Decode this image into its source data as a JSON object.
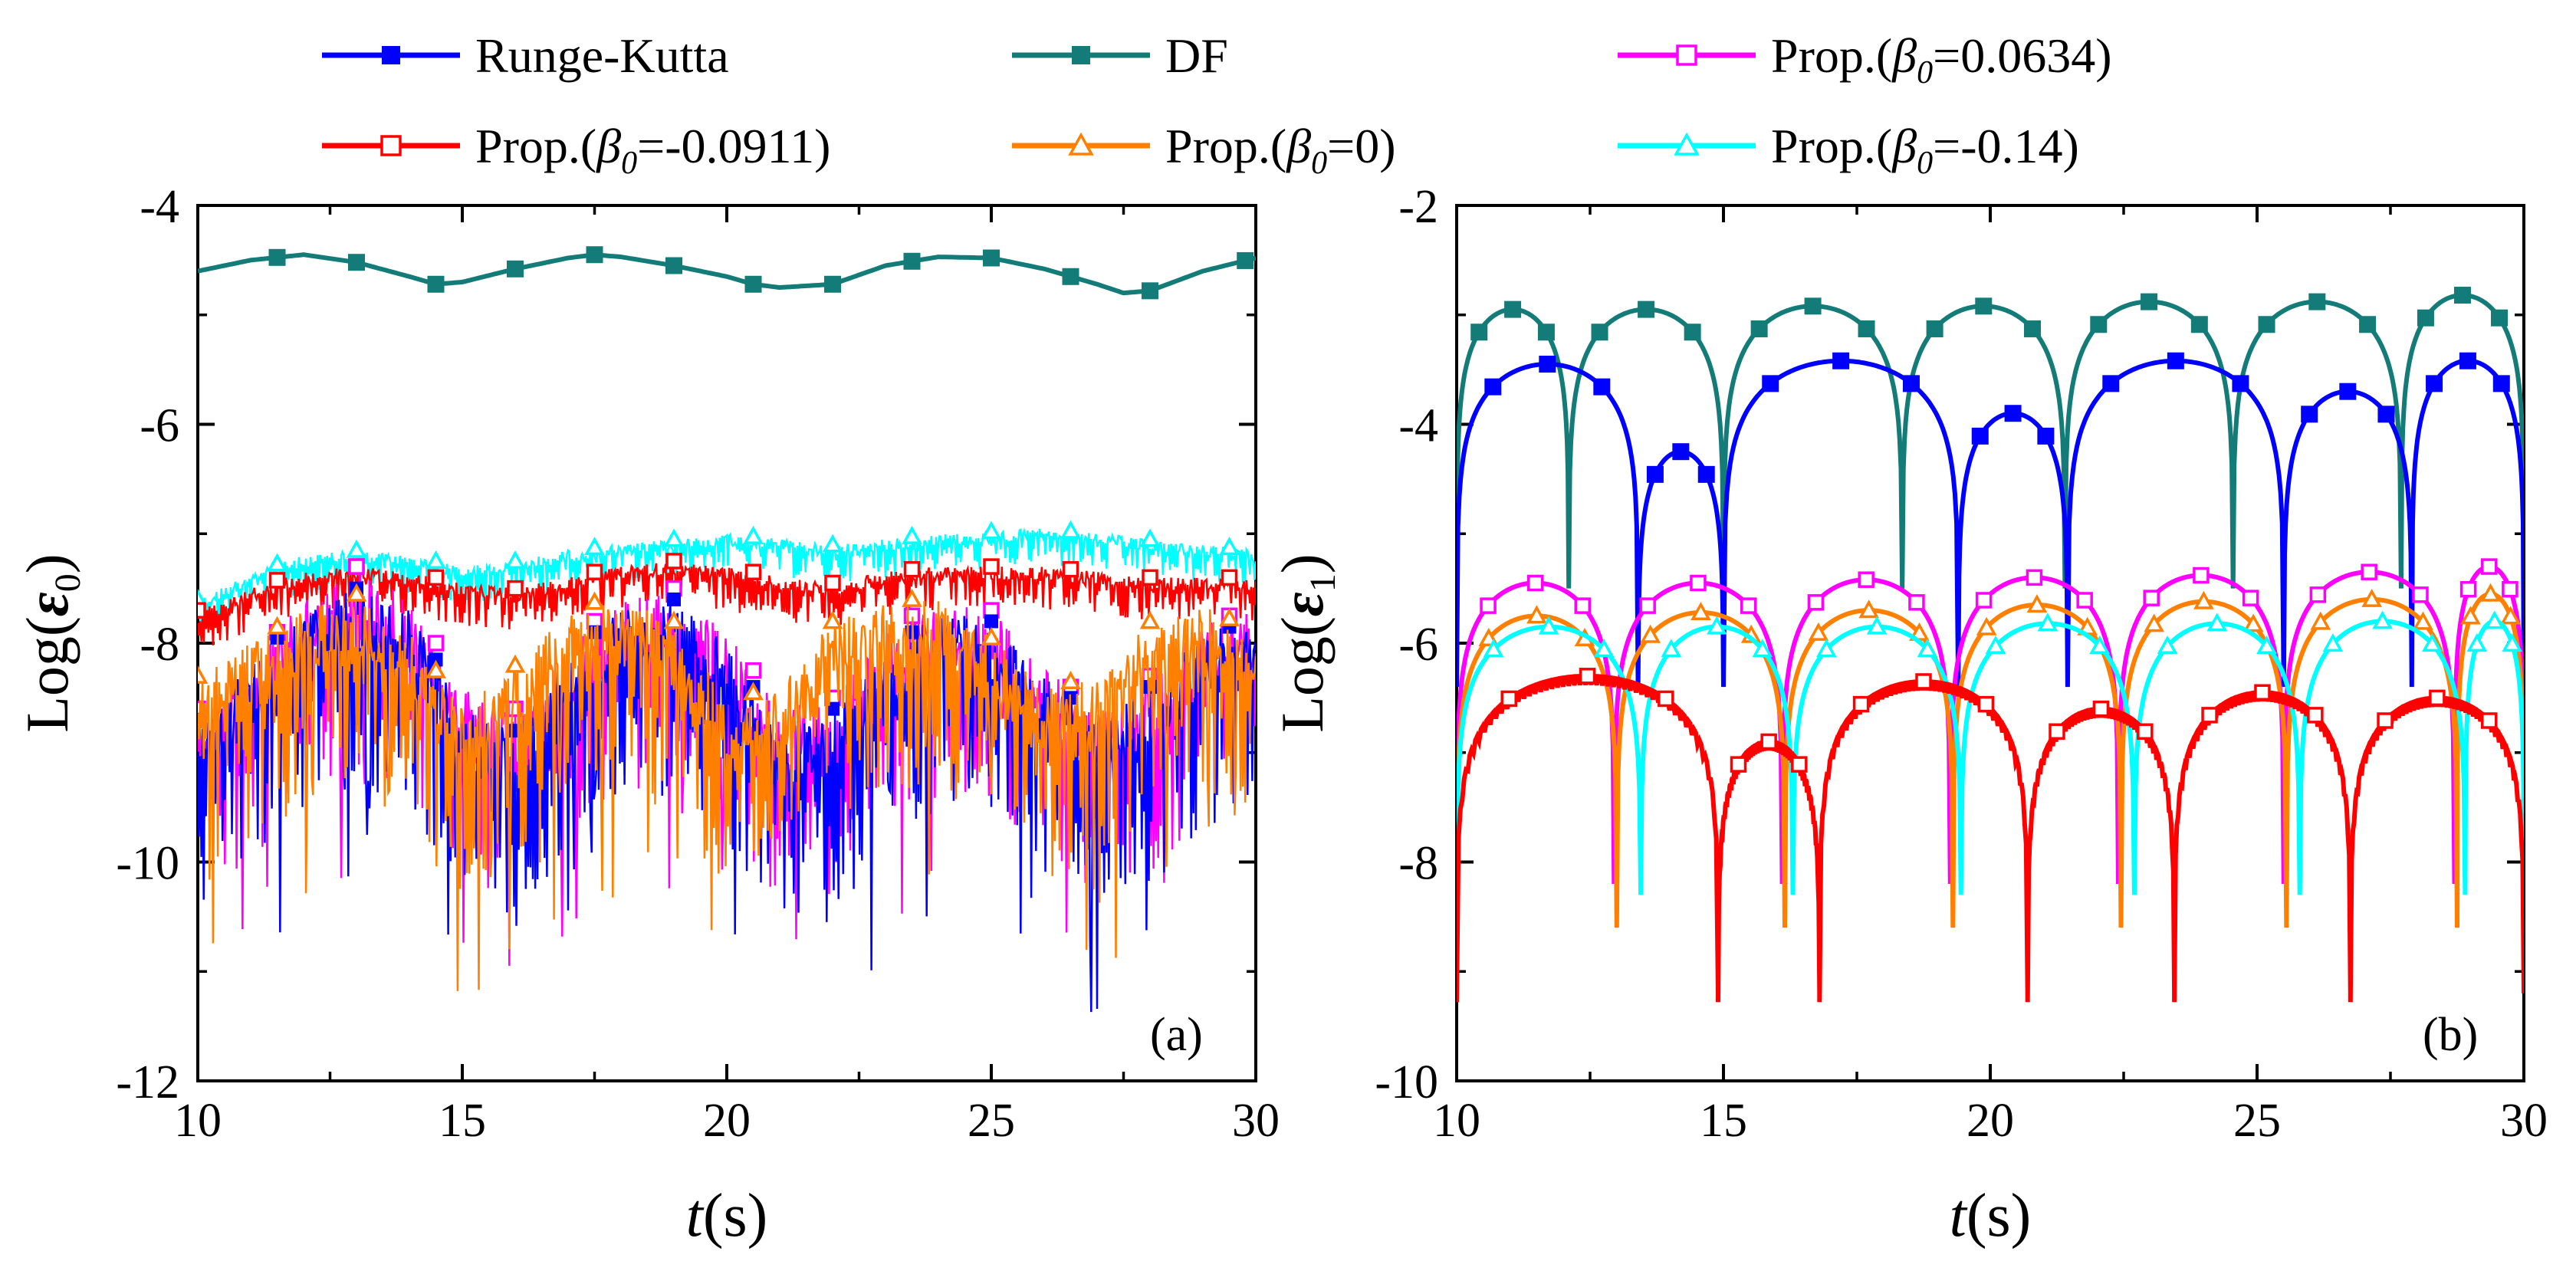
{
  "legend": [
    {
      "label": "Runge-Kutta",
      "color": "#0000ff",
      "marker": "filled-square"
    },
    {
      "label": "DF",
      "color": "#137b78",
      "marker": "filled-square"
    },
    {
      "label": "Prop.(",
      "beta": "β",
      "sub": "0",
      "value": "=0.0634)",
      "color": "#ff00ff",
      "marker": "open-square"
    },
    {
      "label": "Prop.(",
      "beta": "β",
      "sub": "0",
      "value": "=-0.0911)",
      "color": "#ff0000",
      "marker": "open-square"
    },
    {
      "label": "Prop.(",
      "beta": "β",
      "sub": "0",
      "value": "=0)",
      "color": "#ff8000",
      "marker": "open-triangle"
    },
    {
      "label": "Prop.(",
      "beta": "β",
      "sub": "0",
      "value": "=-0.14)",
      "color": "#00ffff",
      "marker": "open-triangle"
    }
  ],
  "chart_data": [
    {
      "type": "line",
      "panel_label": "(a)",
      "xlabel": "t(s)",
      "ylabel": "Log(ε0)",
      "xlim": [
        10,
        30
      ],
      "ylim": [
        -12,
        -4
      ],
      "xticks": [
        "10",
        "15",
        "20",
        "25",
        "30"
      ],
      "yticks": [
        "-12",
        "-10",
        "-8",
        "-6",
        "-4"
      ],
      "series": [
        {
          "name": "DF",
          "x": [
            10,
            11,
            12,
            13,
            14,
            14.5,
            15,
            16,
            17,
            17.5,
            18,
            19,
            20,
            20.5,
            21,
            22,
            23,
            24,
            25,
            26,
            27,
            27.5,
            28,
            29,
            30
          ],
          "y": [
            -4.6,
            -4.5,
            -4.45,
            -4.52,
            -4.65,
            -4.72,
            -4.7,
            -4.58,
            -4.48,
            -4.45,
            -4.47,
            -4.55,
            -4.65,
            -4.72,
            -4.75,
            -4.72,
            -4.55,
            -4.47,
            -4.48,
            -4.58,
            -4.72,
            -4.8,
            -4.78,
            -4.6,
            -4.48
          ]
        },
        {
          "name": "Prop.(β0=-0.14)",
          "x": [
            10,
            11,
            12,
            13,
            14,
            15,
            16,
            17,
            18,
            19,
            20,
            21,
            22,
            23,
            24,
            25,
            26,
            27,
            28,
            29,
            30
          ],
          "y": [
            -7.6,
            -7.35,
            -7.2,
            -7.15,
            -7.2,
            -7.3,
            -7.25,
            -7.15,
            -7.1,
            -7.05,
            -7.0,
            -7.05,
            -7.1,
            -7.05,
            -7.0,
            -6.98,
            -6.95,
            -7.0,
            -7.05,
            -7.1,
            -7.15
          ]
        },
        {
          "name": "Prop.(β0=-0.0911)",
          "x": [
            10,
            11,
            12,
            13,
            14,
            15,
            16,
            17,
            18,
            19,
            20,
            21,
            22,
            23,
            24,
            25,
            26,
            27,
            28,
            29,
            30
          ],
          "y": [
            -7.7,
            -7.5,
            -7.35,
            -7.3,
            -7.35,
            -7.45,
            -7.5,
            -7.4,
            -7.3,
            -7.25,
            -7.3,
            -7.4,
            -7.45,
            -7.35,
            -7.3,
            -7.3,
            -7.3,
            -7.35,
            -7.4,
            -7.4,
            -7.4
          ]
        },
        {
          "name": "Prop.(β0=0.0634)",
          "x": [
            10,
            11,
            12,
            13,
            14,
            15,
            16,
            17,
            18,
            19,
            20,
            21,
            22,
            23,
            24,
            25,
            26,
            27,
            28,
            29,
            30
          ],
          "y": [
            -8.6,
            -8.2,
            -7.6,
            -7.3,
            -7.6,
            -8.4,
            -8.6,
            -8.0,
            -7.6,
            -7.5,
            -7.9,
            -8.6,
            -8.5,
            -7.9,
            -7.6,
            -7.7,
            -8.2,
            -8.6,
            -8.3,
            -7.8,
            -7.7
          ]
        },
        {
          "name": "Runge-Kutta",
          "x": [
            10,
            11,
            12,
            13,
            14,
            15,
            16,
            17,
            18,
            19,
            20,
            21,
            22,
            23,
            24,
            25,
            26,
            27,
            28,
            29,
            30
          ],
          "y": [
            -8.7,
            -8.2,
            -7.7,
            -7.5,
            -7.7,
            -8.6,
            -8.8,
            -8.1,
            -7.7,
            -7.6,
            -8.0,
            -8.8,
            -8.6,
            -8.1,
            -7.7,
            -7.8,
            -8.3,
            -8.7,
            -8.4,
            -7.9,
            -7.8
          ]
        },
        {
          "name": "Prop.(β0=0)",
          "x": [
            10,
            11,
            12,
            13,
            14,
            15,
            16,
            17,
            18,
            19,
            20,
            21,
            22,
            23,
            24,
            25,
            26,
            27,
            28,
            29,
            30
          ],
          "y": [
            -8.3,
            -8.0,
            -7.7,
            -7.55,
            -7.9,
            -8.6,
            -8.2,
            -7.7,
            -7.55,
            -7.8,
            -8.5,
            -8.4,
            -7.8,
            -7.6,
            -7.6,
            -7.95,
            -8.4,
            -8.3,
            -7.8,
            -7.65,
            -7.9
          ]
        }
      ]
    },
    {
      "type": "line",
      "panel_label": "(b)",
      "xlabel": "t(s)",
      "ylabel": "Log(ε1)",
      "xlim": [
        10,
        30
      ],
      "ylim": [
        -10,
        -2
      ],
      "xticks": [
        "10",
        "15",
        "20",
        "25",
        "30"
      ],
      "yticks": [
        "-10",
        "-8",
        "-6",
        "-4",
        "-2"
      ],
      "series": [
        {
          "name": "DF",
          "arches": [
            [
              10,
              12.1,
              -2.95
            ],
            [
              12.1,
              15,
              -2.95
            ],
            [
              15,
              18.35,
              -2.92
            ],
            [
              18.35,
              21.4,
              -2.92
            ],
            [
              21.4,
              24.55,
              -2.88
            ],
            [
              24.55,
              27.7,
              -2.88
            ],
            [
              27.7,
              30,
              -2.82
            ]
          ],
          "zero_depth": -5.5
        },
        {
          "name": "Runge-Kutta",
          "arches": [
            [
              10,
              13.4,
              -3.45
            ],
            [
              13.4,
              15,
              -4.25
            ],
            [
              15,
              19.4,
              -3.42
            ],
            [
              19.4,
              21.45,
              -3.9
            ],
            [
              21.45,
              25.5,
              -3.42
            ],
            [
              25.5,
              27.9,
              -3.7
            ],
            [
              27.9,
              30,
              -3.42
            ]
          ],
          "zero_depth": -6.4
        },
        {
          "name": "Prop.(β0=0.0634)",
          "arches": [
            [
              10,
              12.95,
              -5.45
            ],
            [
              12.95,
              16.1,
              -5.45
            ],
            [
              16.1,
              19.25,
              -5.42
            ],
            [
              19.25,
              22.4,
              -5.4
            ],
            [
              22.4,
              25.5,
              -5.38
            ],
            [
              25.5,
              28.7,
              -5.35
            ],
            [
              28.7,
              30,
              -5.3
            ]
          ],
          "zero_depth": -8.2
        },
        {
          "name": "Prop.(β0=0)",
          "arches": [
            [
              10,
              13.0,
              -5.75
            ],
            [
              13.0,
              16.15,
              -5.72
            ],
            [
              16.15,
              19.3,
              -5.7
            ],
            [
              19.3,
              22.45,
              -5.65
            ],
            [
              22.45,
              25.55,
              -5.62
            ],
            [
              25.55,
              28.75,
              -5.6
            ],
            [
              28.75,
              30,
              -5.55
            ]
          ],
          "zero_depth": -8.6
        },
        {
          "name": "Prop.(β0=-0.14)",
          "arches": [
            [
              10,
              13.45,
              -5.85
            ],
            [
              13.45,
              16.3,
              -5.85
            ],
            [
              16.3,
              19.45,
              -5.85
            ],
            [
              19.45,
              22.7,
              -5.82
            ],
            [
              22.7,
              25.8,
              -5.82
            ],
            [
              25.8,
              28.9,
              -5.8
            ],
            [
              28.9,
              30,
              -5.8
            ]
          ],
          "zero_depth": -8.3
        },
        {
          "name": "Prop.(β0=-0.0911)",
          "arches": [
            [
              10,
              14.9,
              -6.3
            ],
            [
              14.9,
              16.8,
              -6.9
            ],
            [
              16.8,
              20.7,
              -6.35
            ],
            [
              20.7,
              23.45,
              -6.6
            ],
            [
              23.45,
              26.75,
              -6.45
            ],
            [
              26.75,
              30,
              -6.5
            ]
          ],
          "zero_depth": -9.2
        }
      ]
    }
  ]
}
